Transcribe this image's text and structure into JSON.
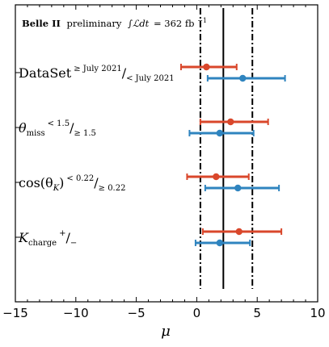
{
  "header": {
    "experiment": "Belle II",
    "status": "preliminary",
    "lumi_symbol": "∫ℒdt",
    "lumi_value": "= 362 fb",
    "lumi_exponent": "−1"
  },
  "chart_data": {
    "type": "scatter",
    "title": "",
    "xlabel": "μ",
    "ylabel": "",
    "xlim": [
      -15,
      10
    ],
    "xticks": [
      -15,
      -10,
      -5,
      0,
      5,
      10
    ],
    "xtick_labels": [
      "−15",
      "−10",
      "−5",
      "0",
      "5",
      "10"
    ],
    "reference": {
      "central": 2.2,
      "band": [
        0.3,
        4.6
      ]
    },
    "categories": [
      {
        "label_base": "DataSet",
        "label_sup1": "≥ July 2021",
        "label_slash": "/",
        "label_sub2": "< July 2021",
        "points": [
          {
            "value": 0.8,
            "low": -1.3,
            "high": 3.3,
            "color": "#d9472b"
          },
          {
            "value": 3.8,
            "low": 0.9,
            "high": 7.3,
            "color": "#2f84bf"
          }
        ]
      },
      {
        "label_base": "θ",
        "label_base_sub": "miss",
        "label_sup1": "< 1.5",
        "label_slash": "/",
        "label_sub2": "≥ 1.5",
        "points": [
          {
            "value": 2.8,
            "low": 0.3,
            "high": 5.9,
            "color": "#d9472b"
          },
          {
            "value": 1.9,
            "low": -0.6,
            "high": 4.7,
            "color": "#2f84bf"
          }
        ]
      },
      {
        "label_base": "cos(θ",
        "label_base_sub": "K",
        "label_base_end": ")",
        "label_sup1": "< 0.22",
        "label_slash": "/",
        "label_sub2": "≥ 0.22",
        "points": [
          {
            "value": 1.6,
            "low": -0.8,
            "high": 4.3,
            "color": "#d9472b"
          },
          {
            "value": 3.4,
            "low": 0.7,
            "high": 6.8,
            "color": "#2f84bf"
          }
        ]
      },
      {
        "label_base": "K",
        "label_base_sub": "charge",
        "label_sup1": "+",
        "label_slash": "/",
        "label_sub2": "−",
        "points": [
          {
            "value": 3.5,
            "low": 0.5,
            "high": 7.0,
            "color": "#d9472b"
          },
          {
            "value": 1.9,
            "low": -0.1,
            "high": 4.4,
            "color": "#2f84bf"
          }
        ]
      }
    ]
  }
}
